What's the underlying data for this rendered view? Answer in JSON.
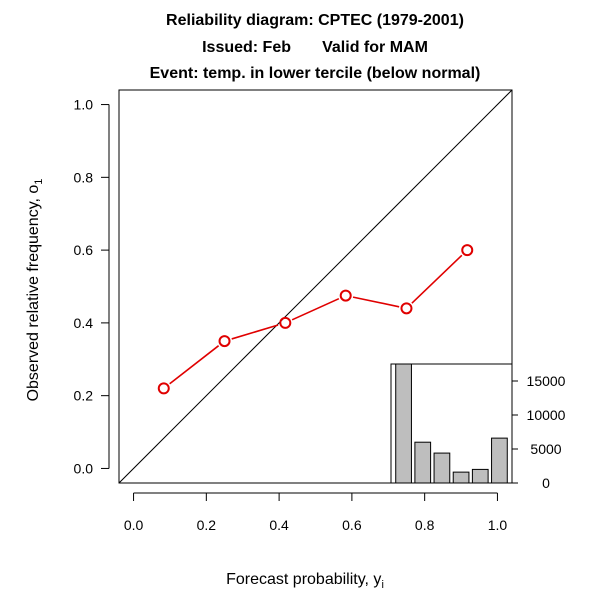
{
  "chart_data": {
    "type": "line",
    "title_lines": [
      "Reliability diagram: CPTEC (1979-2001)",
      "Issued: Feb       Valid for MAM",
      "Event: temp. in lower tercile (below normal)"
    ],
    "xlabel": "Forecast probability, y",
    "xlabel_sub": "i",
    "ylabel": "Observed relative frequency, o",
    "ylabel_sub": "1",
    "xlim": [
      -0.04,
      1.04
    ],
    "ylim": [
      -0.04,
      1.04
    ],
    "x_ticks": [
      0.0,
      0.2,
      0.4,
      0.6,
      0.8,
      1.0
    ],
    "x_tick_labels": [
      "0.0",
      "0.2",
      "0.4",
      "0.6",
      "0.8",
      "1.0"
    ],
    "y_ticks": [
      0.0,
      0.2,
      0.4,
      0.6,
      0.8,
      1.0
    ],
    "y_tick_labels": [
      "0.0",
      "0.2",
      "0.4",
      "0.6",
      "0.8",
      "1.0"
    ],
    "diagonal": true,
    "series": [
      {
        "name": "reliability",
        "color": "#e00000",
        "x": [
          0.083,
          0.25,
          0.417,
          0.583,
          0.75,
          0.917
        ],
        "y": [
          0.22,
          0.35,
          0.4,
          0.475,
          0.44,
          0.6
        ]
      }
    ],
    "inset_histogram": {
      "type": "bar",
      "placement": "bottom-right",
      "values": [
        17500,
        6000,
        4400,
        1600,
        2000,
        6600
      ],
      "ylim": [
        0,
        17500
      ],
      "y_ticks": [
        0,
        5000,
        10000,
        15000
      ],
      "y_tick_labels": [
        "0",
        "5000",
        "10000",
        "15000"
      ]
    }
  }
}
